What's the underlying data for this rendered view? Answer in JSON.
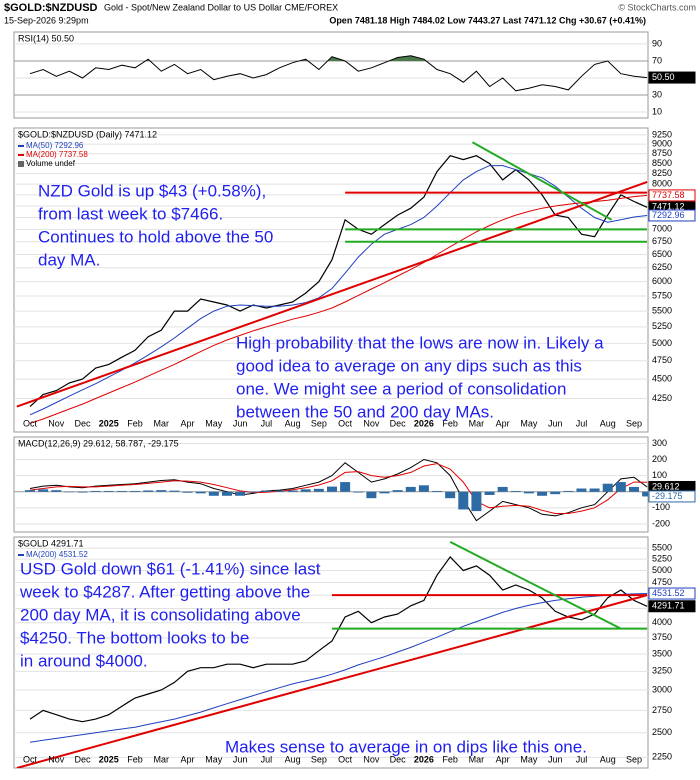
{
  "header": {
    "symbol": "$GOLD:$NZDUSD",
    "description": "Gold - Spot/New Zealand Dollar to US Dollar CME/FOREX",
    "date": "15-Sep-2026 9:29pm",
    "quote": "Open 7481.18  High 7484.02  Low 7443.27  Last 7471.12  Chg +30.67 (+0.41%)",
    "credit": "© StockCharts.com"
  },
  "chart_data": [
    {
      "type": "line",
      "title": "RSI(14) 50.50",
      "ylim": [
        3,
        104
      ],
      "yticks": [
        10,
        30,
        50,
        70,
        90
      ],
      "grid": true,
      "levels": [
        70,
        30
      ],
      "fill_above": 70,
      "fill_color": "#4a7a4a",
      "series": [
        {
          "name": "RSI(14)",
          "color": "#000000",
          "last_box": true,
          "last_label": "50.50",
          "values": [
            55,
            60,
            52,
            58,
            50,
            62,
            60,
            65,
            62,
            72,
            58,
            66,
            55,
            60,
            48,
            52,
            55,
            50,
            54,
            62,
            68,
            72,
            60,
            75,
            70,
            58,
            62,
            68,
            74,
            76,
            72,
            60,
            55,
            45,
            58,
            40,
            50,
            35,
            38,
            42,
            40,
            36,
            52,
            66,
            70,
            55,
            52,
            50.5
          ]
        }
      ]
    },
    {
      "type": "line",
      "title": "$GOLD:$NZDUSD (Daily) 7471.12",
      "log": true,
      "ylim": [
        3850,
        9440
      ],
      "yticks": [
        4250,
        4500,
        4750,
        5000,
        5250,
        5500,
        5750,
        6000,
        6250,
        6500,
        6750,
        7000,
        7250,
        7500,
        7750,
        8000,
        8250,
        8500,
        8750,
        9000,
        9250
      ],
      "grid": true,
      "categories": [
        "Oct",
        null,
        "Nov",
        null,
        "Dec",
        null,
        "2025",
        null,
        "Feb",
        null,
        "Mar",
        null,
        "Apr",
        null,
        "May",
        null,
        "Jun",
        null,
        "Jul",
        null,
        "Aug",
        null,
        "Sep",
        null,
        "Oct",
        null,
        "Nov",
        null,
        "Dec",
        null,
        "2026",
        null,
        "Feb",
        null,
        "Mar",
        null,
        "Apr",
        null,
        "May",
        null,
        "Jun",
        null,
        "Jul",
        null,
        "Aug",
        null,
        "Sep",
        null
      ],
      "legend_extra": [
        "Volume undef"
      ],
      "series": [
        {
          "name": "Price",
          "color": "#000000",
          "last_box": true,
          "values": [
            4150,
            4300,
            4350,
            4450,
            4500,
            4650,
            4700,
            4800,
            4900,
            5100,
            5200,
            5500,
            5500,
            5700,
            5650,
            5600,
            5500,
            5600,
            5550,
            5600,
            5650,
            5800,
            6000,
            6400,
            7200,
            7000,
            6900,
            7100,
            7300,
            7450,
            7700,
            8300,
            8700,
            8600,
            8700,
            8500,
            8100,
            8350,
            8100,
            7750,
            7300,
            7250,
            6900,
            6850,
            7300,
            7750,
            7600,
            7471.12
          ]
        },
        {
          "name": "MA(50) 7292.96",
          "color": "#1f3fbf",
          "last_box": true,
          "values": [
            4050,
            4120,
            4200,
            4280,
            4360,
            4440,
            4530,
            4620,
            4720,
            4830,
            4950,
            5080,
            5230,
            5380,
            5500,
            5580,
            5600,
            5590,
            5580,
            5580,
            5600,
            5640,
            5720,
            5880,
            6150,
            6450,
            6700,
            6900,
            7000,
            7100,
            7250,
            7500,
            7800,
            8100,
            8300,
            8450,
            8450,
            8350,
            8250,
            8150,
            7950,
            7700,
            7450,
            7250,
            7150,
            7200,
            7260,
            7292.96
          ]
        },
        {
          "name": "MA(200) 7737.58",
          "color": "#e00000",
          "last_box": true,
          "values": [
            3950,
            4000,
            4060,
            4120,
            4180,
            4250,
            4320,
            4390,
            4460,
            4540,
            4620,
            4700,
            4790,
            4880,
            4970,
            5050,
            5120,
            5190,
            5250,
            5310,
            5370,
            5420,
            5480,
            5550,
            5650,
            5760,
            5870,
            5980,
            6100,
            6220,
            6350,
            6500,
            6650,
            6800,
            6950,
            7080,
            7200,
            7300,
            7380,
            7450,
            7500,
            7540,
            7570,
            7600,
            7630,
            7670,
            7710,
            7737.58
          ]
        }
      ],
      "lines": [
        {
          "color": "#e00000",
          "x": [
            -1,
            47
          ],
          "values": [
            4150,
            8050
          ]
        },
        {
          "color": "#e00000",
          "x": [
            24,
            47
          ],
          "values": [
            7800,
            7800
          ]
        },
        {
          "color": "#22aa22",
          "x": [
            24,
            47
          ],
          "values": [
            7000,
            7000
          ]
        },
        {
          "color": "#22aa22",
          "x": [
            24,
            47
          ],
          "values": [
            6750,
            6750
          ]
        },
        {
          "color": "#22aa22",
          "x": [
            33.7,
            44.3
          ],
          "values": [
            9050,
            7200
          ]
        }
      ],
      "annotations": [
        {
          "lines": [
            "NZD Gold is up $43 (+0.58%),",
            "from last week to $7466.",
            "Continues to hold above the 50",
            "day MA."
          ]
        },
        {
          "lines": [
            "High probability that the lows are now in. Likely a",
            "good idea to average on any dips such as this",
            "one. We might see a period of consolidation",
            "between the 50 and 200 day MAs."
          ]
        }
      ]
    },
    {
      "type": "line",
      "title": "MACD(12,26,9) 29.612, 58.787, -29.175",
      "ylim": [
        -250,
        340
      ],
      "yticks": [
        -200,
        -100,
        100,
        200,
        300
      ],
      "grid": true,
      "levels": [
        0
      ],
      "series": [
        {
          "name": "MACD",
          "color": "#000000",
          "last_box": true,
          "values": [
            20,
            35,
            40,
            30,
            25,
            35,
            40,
            45,
            50,
            60,
            70,
            75,
            60,
            50,
            20,
            0,
            -20,
            -10,
            5,
            10,
            20,
            40,
            60,
            100,
            180,
            120,
            60,
            80,
            110,
            150,
            200,
            180,
            100,
            -50,
            -180,
            -120,
            -60,
            -80,
            -100,
            -140,
            -150,
            -130,
            -100,
            -80,
            0,
            80,
            90,
            29.612
          ]
        },
        {
          "name": "Signal",
          "color": "#e00000",
          "values": [
            10,
            20,
            30,
            33,
            30,
            30,
            35,
            40,
            45,
            52,
            60,
            68,
            66,
            60,
            45,
            25,
            5,
            -5,
            -3,
            3,
            12,
            25,
            42,
            68,
            120,
            125,
            100,
            90,
            100,
            120,
            160,
            175,
            140,
            60,
            -60,
            -100,
            -90,
            -85,
            -90,
            -115,
            -135,
            -135,
            -120,
            -100,
            -50,
            20,
            60,
            58.787
          ]
        },
        {
          "name": "Histogram",
          "kind": "hist",
          "color": "#2e6aa3",
          "last_box": true,
          "values": [
            10,
            15,
            10,
            -3,
            -5,
            5,
            5,
            5,
            5,
            8,
            10,
            7,
            -6,
            -10,
            -25,
            -25,
            -25,
            -5,
            8,
            7,
            8,
            15,
            18,
            32,
            60,
            -5,
            -40,
            -10,
            10,
            30,
            40,
            5,
            -40,
            -110,
            -120,
            -20,
            30,
            5,
            -10,
            -25,
            -15,
            5,
            20,
            20,
            50,
            60,
            30,
            -29.175
          ]
        }
      ]
    },
    {
      "type": "line",
      "title": "$GOLD 4291.71",
      "log": true,
      "ylim": [
        2150,
        5770
      ],
      "yticks": [
        2250,
        2500,
        2750,
        3000,
        3250,
        3500,
        3750,
        4000,
        4250,
        4500,
        4750,
        5000,
        5250,
        5500
      ],
      "grid": true,
      "categories": [
        "Oct",
        null,
        "Nov",
        null,
        "Dec",
        null,
        "2025",
        null,
        "Feb",
        null,
        "Mar",
        null,
        "Apr",
        null,
        "May",
        null,
        "Jun",
        null,
        "Jul",
        null,
        "Aug",
        null,
        "Sep",
        null,
        "Oct",
        null,
        "Nov",
        null,
        "Dec",
        null,
        "2026",
        null,
        "Feb",
        null,
        "Mar",
        null,
        "Apr",
        null,
        "May",
        null,
        "Jun",
        null,
        "Jul",
        null,
        "Aug",
        null,
        "Sep",
        null
      ],
      "series": [
        {
          "name": "Price",
          "color": "#000000",
          "last_box": true,
          "values": [
            2650,
            2750,
            2700,
            2650,
            2620,
            2650,
            2700,
            2800,
            2900,
            2950,
            3000,
            3100,
            3250,
            3300,
            3300,
            3350,
            3350,
            3300,
            3350,
            3350,
            3350,
            3400,
            3550,
            3700,
            4100,
            4200,
            4000,
            4100,
            4150,
            4300,
            4400,
            4900,
            5300,
            5000,
            5100,
            4900,
            4600,
            4700,
            4600,
            4450,
            4200,
            4100,
            4050,
            4150,
            4450,
            4600,
            4400,
            4291.71
          ]
        },
        {
          "name": "MA(200) 4531.52",
          "color": "#1f3fbf",
          "last_box": true,
          "values": [
            2400,
            2420,
            2440,
            2460,
            2480,
            2500,
            2520,
            2540,
            2560,
            2590,
            2620,
            2650,
            2690,
            2730,
            2780,
            2830,
            2880,
            2930,
            2980,
            3030,
            3080,
            3120,
            3160,
            3210,
            3270,
            3340,
            3400,
            3460,
            3530,
            3600,
            3680,
            3760,
            3850,
            3940,
            4020,
            4100,
            4180,
            4250,
            4310,
            4360,
            4400,
            4430,
            4460,
            4480,
            4500,
            4515,
            4525,
            4531.52
          ]
        }
      ],
      "lines": [
        {
          "color": "#e00000",
          "x": [
            -1,
            47
          ],
          "values": [
            2150,
            4500
          ]
        },
        {
          "color": "#e00000",
          "x": [
            23,
            47
          ],
          "values": [
            4500,
            4500
          ]
        },
        {
          "color": "#22aa22",
          "x": [
            23,
            47
          ],
          "values": [
            3900,
            3900
          ]
        },
        {
          "color": "#22aa22",
          "x": [
            32,
            45
          ],
          "values": [
            5650,
            3900
          ]
        }
      ],
      "annotations": [
        {
          "lines": [
            "USD Gold down $61 (-1.41%) since last",
            "week to $4287. After getting above the",
            "200 day MA, it is consolidating above",
            "$4250. The bottom looks to be",
            "in around $4000."
          ]
        },
        {
          "lines": [
            "Makes sense to average in on dips like this one."
          ]
        }
      ]
    }
  ]
}
